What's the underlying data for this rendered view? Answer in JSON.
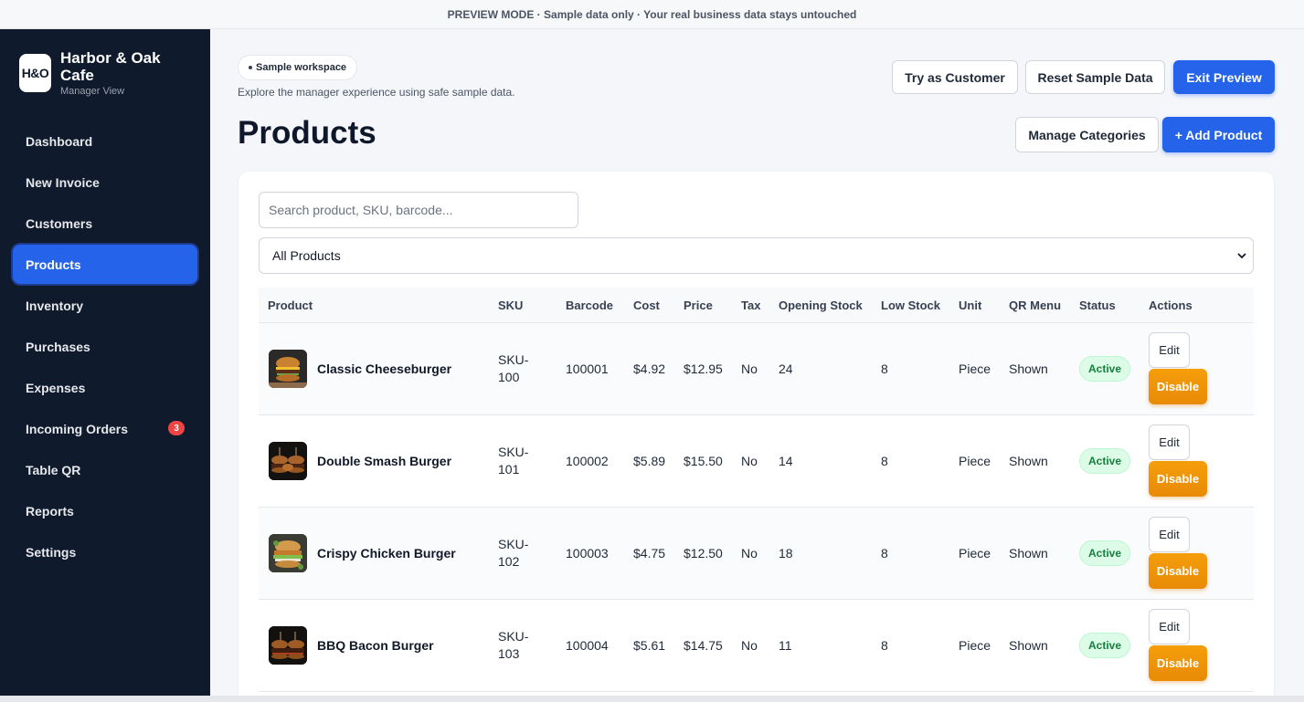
{
  "banner": {
    "text": "PREVIEW MODE · Sample data only · Your real business data stays untouched"
  },
  "brand": {
    "logo_text": "H&O",
    "name": "Harbor & Oak Cafe",
    "subtitle": "Manager View"
  },
  "sidebar": {
    "items": [
      {
        "label": "Dashboard"
      },
      {
        "label": "New Invoice"
      },
      {
        "label": "Customers"
      },
      {
        "label": "Products",
        "active": true
      },
      {
        "label": "Inventory"
      },
      {
        "label": "Purchases"
      },
      {
        "label": "Expenses"
      },
      {
        "label": "Incoming Orders",
        "badge": "3"
      },
      {
        "label": "Table QR"
      },
      {
        "label": "Reports"
      },
      {
        "label": "Settings"
      }
    ]
  },
  "workspace": {
    "pill": "Sample workspace",
    "hint": "Explore the manager experience using safe sample data."
  },
  "header": {
    "try_customer": "Try as Customer",
    "reset_data": "Reset Sample Data",
    "exit_preview": "Exit Preview",
    "title": "Products",
    "manage_categories": "Manage Categories",
    "add_product": "+ Add Product"
  },
  "filters": {
    "search_placeholder": "Search product, SKU, barcode...",
    "category_selected": "All Products"
  },
  "table": {
    "columns": [
      "Product",
      "SKU",
      "Barcode",
      "Cost",
      "Price",
      "Tax",
      "Opening Stock",
      "Low Stock",
      "Unit",
      "QR Menu",
      "Status",
      "Actions"
    ],
    "rows": [
      {
        "name": "Classic Cheeseburger",
        "sku": "SKU-100",
        "barcode": "100001",
        "cost": "$4.92",
        "price": "$12.95",
        "tax": "No",
        "opening_stock": "24",
        "low_stock": "8",
        "unit": "Piece",
        "qr_menu": "Shown",
        "status": "Active",
        "edit": "Edit",
        "disable": "Disable"
      },
      {
        "name": "Double Smash Burger",
        "sku": "SKU-101",
        "barcode": "100002",
        "cost": "$5.89",
        "price": "$15.50",
        "tax": "No",
        "opening_stock": "14",
        "low_stock": "8",
        "unit": "Piece",
        "qr_menu": "Shown",
        "status": "Active",
        "edit": "Edit",
        "disable": "Disable"
      },
      {
        "name": "Crispy Chicken Burger",
        "sku": "SKU-102",
        "barcode": "100003",
        "cost": "$4.75",
        "price": "$12.50",
        "tax": "No",
        "opening_stock": "18",
        "low_stock": "8",
        "unit": "Piece",
        "qr_menu": "Shown",
        "status": "Active",
        "edit": "Edit",
        "disable": "Disable"
      },
      {
        "name": "BBQ Bacon Burger",
        "sku": "SKU-103",
        "barcode": "100004",
        "cost": "$5.61",
        "price": "$14.75",
        "tax": "No",
        "opening_stock": "11",
        "low_stock": "8",
        "unit": "Piece",
        "qr_menu": "Shown",
        "status": "Active",
        "edit": "Edit",
        "disable": "Disable"
      }
    ]
  },
  "colors": {
    "sidebar_bg": "#0f1a2c",
    "accent": "#2563eb",
    "warning": "#f59e0b",
    "success": "#15803d",
    "badge": "#ef4444"
  }
}
